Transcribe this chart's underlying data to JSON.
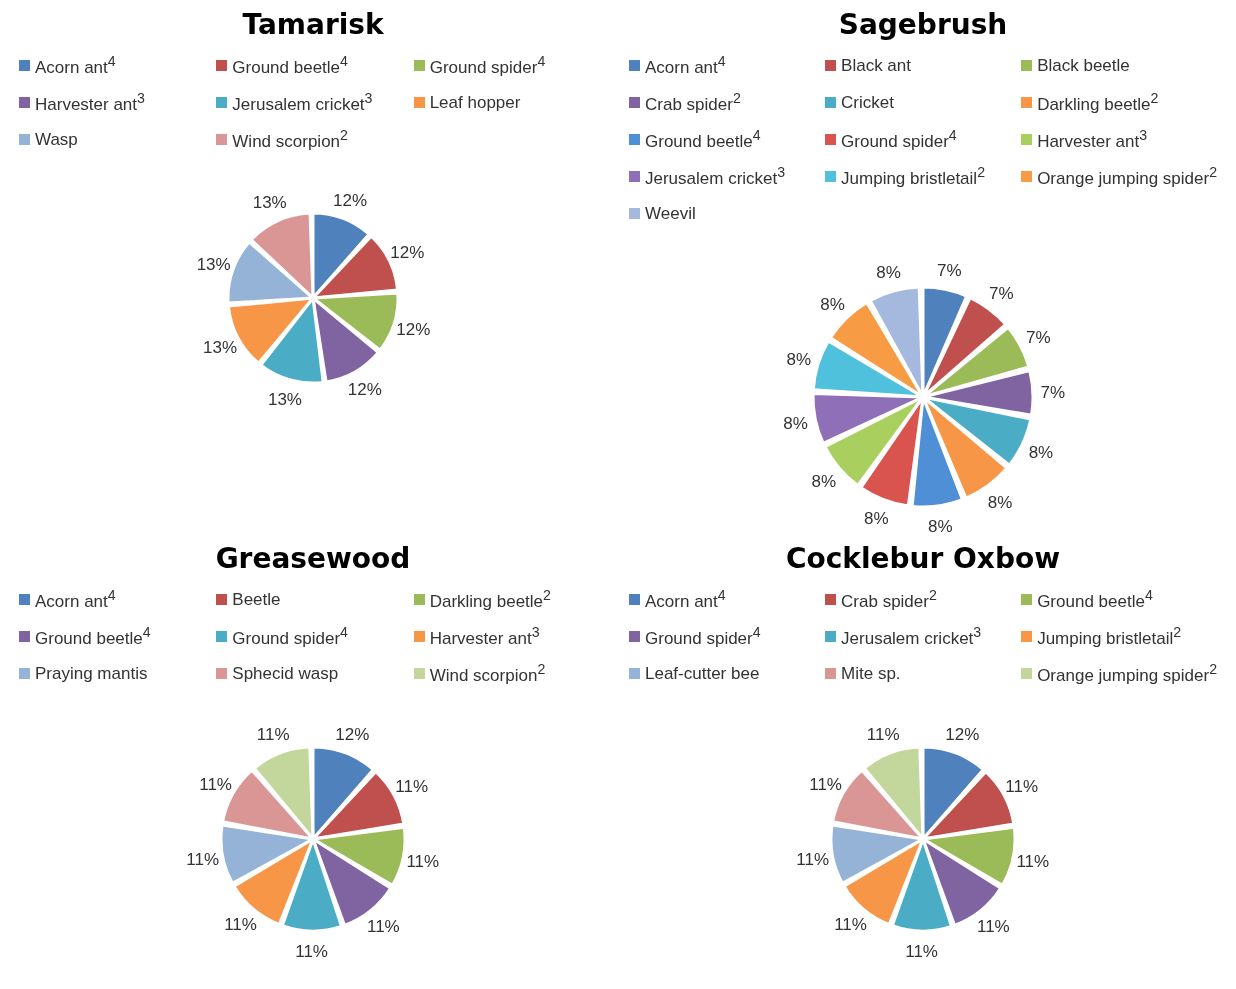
{
  "chart_data": [
    {
      "type": "pie",
      "title": "Tamarisk",
      "legend": "top",
      "categories": [
        "Acorn ant$^{4}$",
        "Ground beetle$^{4}$",
        "Ground spider$^{4}$",
        "Harvester ant$^{3}$",
        "Jerusalem cricket$^{3}$",
        "Leaf hopper",
        "Wasp",
        "Wind scorpion$^{2}$"
      ],
      "values": [
        12,
        12,
        12,
        12,
        13,
        13,
        13,
        13
      ],
      "value_labels": [
        "12%",
        "12%",
        "12%",
        "12%",
        "13%",
        "13%",
        "13%",
        "13%"
      ],
      "colors": [
        "#4f81bd",
        "#c0504d",
        "#9bbb59",
        "#8064a2",
        "#4bacc6",
        "#f79646",
        "#95b3d7",
        "#d99694"
      ]
    },
    {
      "type": "pie",
      "title": "Sagebrush",
      "legend": "top",
      "categories": [
        "Acorn ant$^{4}$",
        "Black ant",
        "Black beetle",
        "Crab spider$^{2}$",
        "Cricket",
        "Darkling beetle$^{2}$",
        "Ground beetle$^{4}$",
        "Ground spider$^{4}$",
        "Harvester ant$^{3}$",
        "Jerusalem cricket$^{3}$",
        "Jumping bristletail$^{2}$",
        "Orange jumping spider$^{2}$",
        "Weevil"
      ],
      "values": [
        7,
        7,
        7,
        7,
        8,
        8,
        8,
        8,
        8,
        8,
        8,
        8,
        8
      ],
      "value_labels": [
        "7%",
        "7%",
        "7%",
        "7%",
        "8%",
        "8%",
        "8%",
        "8%",
        "8%",
        "8%",
        "8%",
        "8%",
        "8%"
      ],
      "colors": [
        "#4f81bd",
        "#c0504d",
        "#9bbb59",
        "#8064a2",
        "#4bacc6",
        "#f79646",
        "#4f8fd6",
        "#d9534f",
        "#a9cf5f",
        "#8f6fb8",
        "#4fc1dd",
        "#f89b45",
        "#a5b8dd"
      ]
    },
    {
      "type": "pie",
      "title": "Greasewood",
      "legend": "top",
      "categories": [
        "Acorn ant$^{4}$",
        "Beetle",
        "Darkling beetle$^{2}$",
        "Ground beetle$^{4}$",
        "Ground spider$^{4}$",
        "Harvester ant$^{3}$",
        "Praying mantis",
        "Sphecid wasp",
        "Wind scorpion$^{2}$"
      ],
      "values": [
        12,
        11,
        11,
        11,
        11,
        11,
        11,
        11,
        11
      ],
      "value_labels": [
        "12%",
        "11%",
        "11%",
        "11%",
        "11%",
        "11%",
        "11%",
        "11%",
        "11%"
      ],
      "colors": [
        "#4f81bd",
        "#c0504d",
        "#9bbb59",
        "#8064a2",
        "#4bacc6",
        "#f79646",
        "#95b3d7",
        "#d99694",
        "#c3d69b"
      ]
    },
    {
      "type": "pie",
      "title": "Cocklebur Oxbow",
      "legend": "top",
      "categories": [
        "Acorn ant$^{4}$",
        "Crab spider$^{2}$",
        "Ground beetle$^{4}$",
        "Ground spider$^{4}$",
        "Jerusalem cricket$^{3}$",
        "Jumping bristletail$^{2}$",
        "Leaf-cutter bee",
        "Mite sp.",
        "Orange jumping spider$^{2}$"
      ],
      "values": [
        12,
        11,
        11,
        11,
        11,
        11,
        11,
        11,
        11
      ],
      "value_labels": [
        "12%",
        "11%",
        "11%",
        "11%",
        "11%",
        "11%",
        "11%",
        "11%",
        "11%"
      ],
      "colors": [
        "#4f81bd",
        "#c0504d",
        "#9bbb59",
        "#8064a2",
        "#4bacc6",
        "#f79646",
        "#95b3d7",
        "#d99694",
        "#c3d69b"
      ]
    }
  ]
}
